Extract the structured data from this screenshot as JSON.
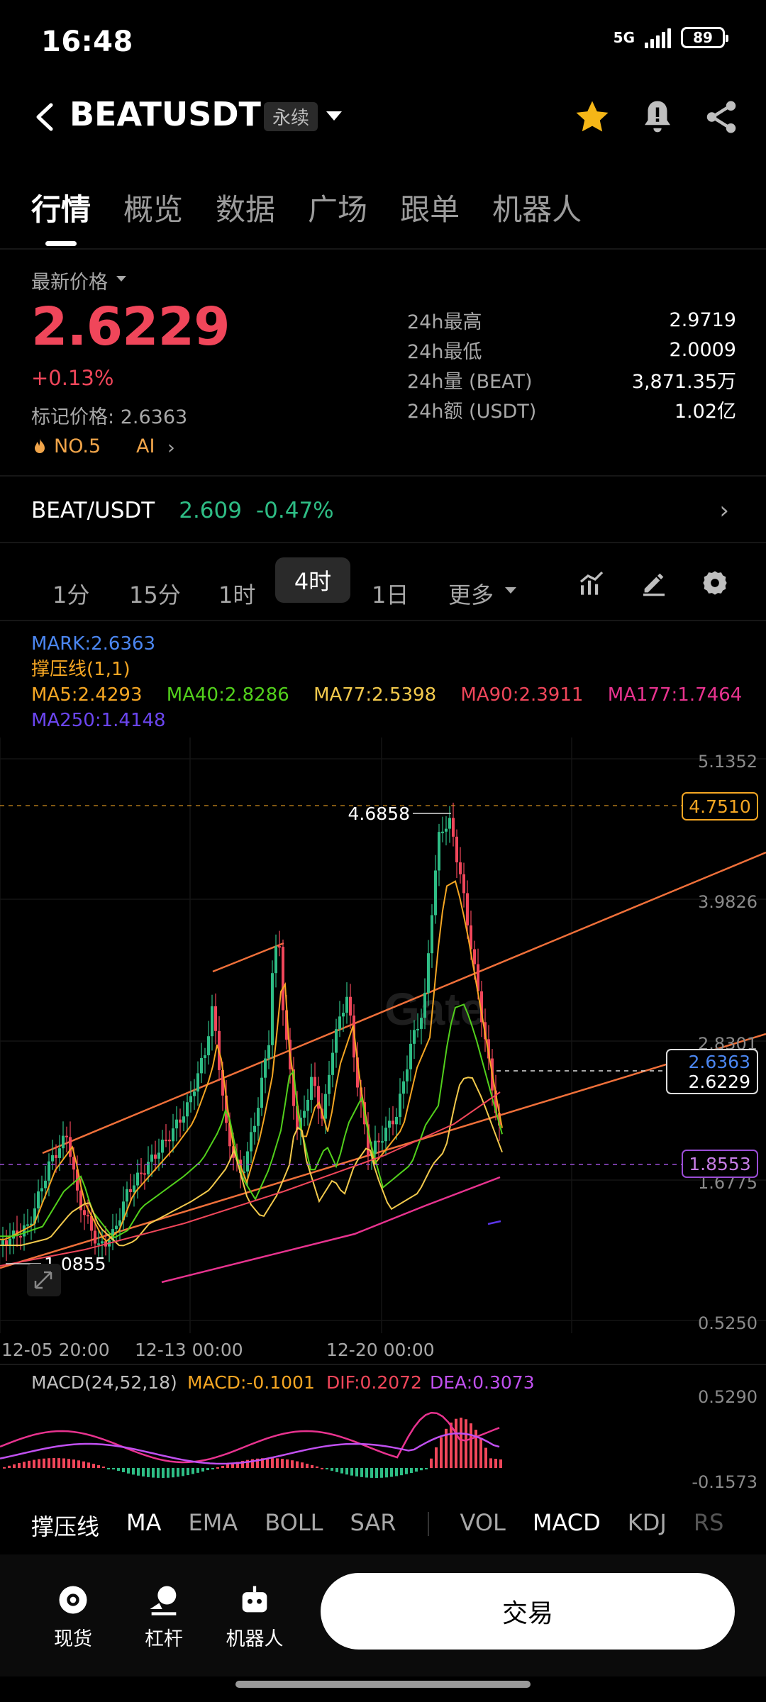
{
  "status": {
    "time": "16:48",
    "network": "5G",
    "battery": "89"
  },
  "header": {
    "symbol": "BEATUSDT",
    "badge": "永续"
  },
  "tabs": [
    "行情",
    "概览",
    "数据",
    "广场",
    "跟单",
    "机器人"
  ],
  "price": {
    "label": "最新价格",
    "last": "2.6229",
    "change": "+0.13%",
    "mark_label": "标记价格:",
    "mark_value": "2.6363",
    "rank": "NO.5",
    "ai": "AI"
  },
  "stats": [
    {
      "label": "24h最高",
      "value": "2.9719"
    },
    {
      "label": "24h最低",
      "value": "2.0009"
    },
    {
      "label": "24h量 (BEAT)",
      "value": "3,871.35万"
    },
    {
      "label": "24h额 (USDT)",
      "value": "1.02亿"
    }
  ],
  "spot": {
    "pair": "BEAT/USDT",
    "price": "2.609",
    "change": "-0.47%"
  },
  "intervals": [
    "1分",
    "15分",
    "1时",
    "4时",
    "1日",
    "更多"
  ],
  "legend": {
    "mark": "MARK:2.6363",
    "support": "撑压线(1,1)",
    "ma5": "MA5:2.4293",
    "ma40": "MA40:2.8286",
    "ma77": "MA77:2.5398",
    "ma90": "MA90:2.3911",
    "ma177": "MA177:1.7464",
    "ma250": "MA250:1.4148"
  },
  "chart_data": {
    "type": "candlestick",
    "y_axis_ticks": [
      "5.1352",
      "3.9826",
      "2.8301",
      "1.6775",
      "0.5250"
    ],
    "x_axis_ticks": [
      "12-05 20:00",
      "12-13 00:00",
      "12-20 00:00"
    ],
    "price_tags": {
      "top": "4.7510",
      "mark": "2.6363",
      "last": "2.6229",
      "level": "1.8553"
    },
    "annotations": {
      "high": "4.6858",
      "low": "1.0855"
    },
    "watermark": "Gate",
    "colors": {
      "up": "#2ebd85",
      "down": "#f0465a",
      "ma5": "#f5a623",
      "ma40": "#52d01c",
      "ma77": "#f2c94c",
      "ma90": "#f0465a",
      "ma177": "#e8338f",
      "ma250": "#5b35e8",
      "trend": "#f0703a"
    }
  },
  "macd": {
    "params": "MACD(24,52,18)",
    "macd": "MACD:-0.1001",
    "dif": "DIF:0.2072",
    "dea": "DEA:0.3073",
    "y_top": "0.5290",
    "y_bottom": "-0.1573"
  },
  "indicators": [
    "撑压线",
    "MA",
    "EMA",
    "BOLL",
    "SAR",
    "VOL",
    "MACD",
    "KDJ",
    "RS"
  ],
  "nav": [
    "现货",
    "杠杆",
    "机器人"
  ],
  "trade_button": "交易"
}
